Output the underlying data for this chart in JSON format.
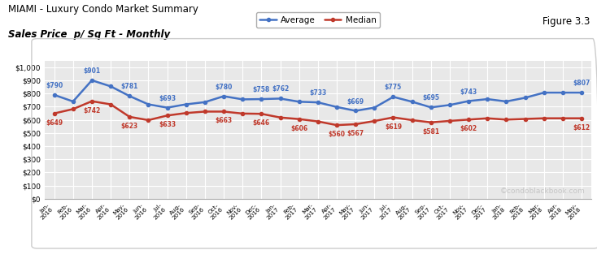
{
  "title_line1": "MIAMI - Luxury Condo Market Summary",
  "title_line2": "Sales Price  p/ Sq Ft - Monthly",
  "figure_label": "Figure 3.3",
  "watermark": "©condoblackbook.com",
  "x_labels": [
    "Jan-\n2016",
    "Feb-\n2016",
    "Mar-\n2016",
    "Apr-\n2016",
    "May-\n2016",
    "Jun-\n2016",
    "Jul-\n2016",
    "Aug-\n2016",
    "Sep-\n2016",
    "Oct-\n2016",
    "Nov-\n2016",
    "Dec-\n2016",
    "Jan-\n2017",
    "Feb-\n2017",
    "Mar-\n2017",
    "Apr-\n2017",
    "May-\n2017",
    "Jun-\n2017",
    "Jul-\n2017",
    "Aug-\n2017",
    "Sep-\n2017",
    "Oct-\n2017",
    "Nov-\n2017",
    "Dec-\n2017",
    "Jan-\n2018",
    "Feb-\n2018",
    "Mar-\n2018",
    "Apr-\n2018",
    "May-\n2018"
  ],
  "average_values": [
    790,
    740,
    901,
    855,
    781,
    718,
    693,
    718,
    735,
    780,
    756,
    758,
    762,
    738,
    733,
    698,
    669,
    693,
    775,
    738,
    695,
    713,
    743,
    758,
    740,
    768,
    807,
    807,
    807
  ],
  "median_values": [
    649,
    682,
    742,
    718,
    623,
    598,
    633,
    652,
    663,
    663,
    648,
    646,
    618,
    606,
    588,
    560,
    567,
    591,
    619,
    598,
    581,
    592,
    602,
    612,
    602,
    607,
    612,
    612,
    612
  ],
  "avg_label_indices": [
    0,
    2,
    4,
    6,
    9,
    11,
    12,
    14,
    16,
    18,
    20,
    22,
    28
  ],
  "avg_label_values": [
    "$790",
    "$901",
    "$781",
    "$693",
    "$780",
    "$758",
    "$762",
    "$733",
    "$669",
    "$775",
    "$695",
    "$743",
    "$807"
  ],
  "med_label_indices": [
    0,
    2,
    4,
    6,
    9,
    11,
    13,
    15,
    16,
    18,
    20,
    22,
    28
  ],
  "med_label_values": [
    "$649",
    "$742",
    "$623",
    "$633",
    "$663",
    "$646",
    "$606",
    "$560",
    "$567",
    "$619",
    "$581",
    "$602",
    "$612"
  ],
  "avg_color": "#4472c4",
  "med_color": "#c0392b",
  "bg_color": "#ffffff",
  "plot_bg_color": "#e8e8e8",
  "border_color": "#cccccc",
  "grid_color": "#ffffff",
  "ylim": [
    0,
    1050
  ],
  "yticks": [
    0,
    100,
    200,
    300,
    400,
    500,
    600,
    700,
    800,
    900,
    1000
  ],
  "ytick_labels": [
    "$0",
    "$100",
    "$200",
    "$300",
    "$400",
    "$500",
    "$600",
    "$700",
    "$800",
    "$900",
    "$1,000"
  ]
}
